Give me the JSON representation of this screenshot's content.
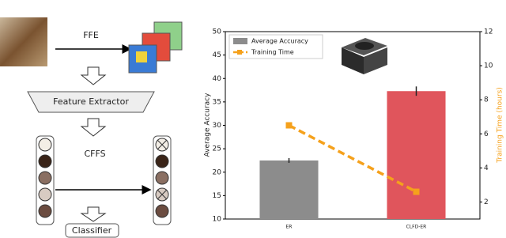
{
  "diagram": {
    "ffe": "FFE",
    "extractor": "Feature Extractor",
    "cffs": "CFFS",
    "classifier": "Classifier"
  },
  "chart_data": {
    "type": "bar",
    "categories": [
      "ER",
      "CLFD-ER"
    ],
    "ylabel": "Average Accuracy",
    "y2label": "Training Time (hours)",
    "ylim": [
      10,
      50
    ],
    "yticks": [
      10,
      15,
      20,
      25,
      30,
      35,
      40,
      45,
      50
    ],
    "y2lim": [
      1,
      12
    ],
    "y2ticks": [
      2,
      4,
      6,
      8,
      10,
      12
    ],
    "legend": "upper left",
    "series": [
      {
        "name": "Average Accuracy",
        "type": "bar",
        "colors": [
          "#8c8c8c",
          "#e0555c"
        ],
        "values": [
          22.5,
          37.3
        ],
        "errors": [
          0.5,
          1.0
        ]
      },
      {
        "name": "Training Time",
        "type": "line",
        "axis": "y2",
        "color": "#f5a11c",
        "values": [
          6.5,
          2.6
        ]
      }
    ]
  }
}
